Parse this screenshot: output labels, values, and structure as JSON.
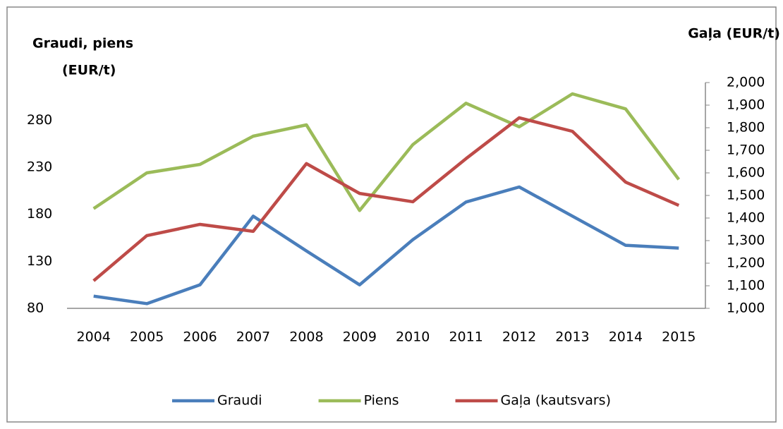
{
  "chart_data": {
    "type": "line",
    "ylabel_lines": [
      "Graudi, piens",
      "(EUR/t)"
    ],
    "y2label": "Gaļa  (EUR/t)",
    "categories": [
      "2004",
      "2005",
      "2006",
      "2007",
      "2008",
      "2009",
      "2010",
      "2011",
      "2012",
      "2013",
      "2014",
      "2015"
    ],
    "series": [
      {
        "name": "Graudi",
        "color": "#4a7ebb",
        "axis": "y",
        "values": [
          93,
          85,
          105,
          178,
          141,
          105,
          153,
          193,
          209,
          178,
          147,
          144
        ]
      },
      {
        "name": "Piens",
        "color": "#9bbb59",
        "axis": "y",
        "values": [
          186,
          224,
          233,
          263,
          275,
          184,
          254,
          298,
          273,
          308,
          292,
          217
        ]
      },
      {
        "name": "Gaļa (kautsvars)",
        "color": "#be4b48",
        "axis": "y2",
        "values": [
          1122,
          1322,
          1372,
          1341,
          1641,
          1509,
          1472,
          1663,
          1844,
          1784,
          1559,
          1456
        ]
      }
    ],
    "ylim": [
      80,
      320
    ],
    "yticks": [
      80,
      130,
      180,
      230,
      280
    ],
    "y2lim": [
      1000,
      2000
    ],
    "y2ticks": [
      {
        "value": 1000,
        "label": "1,000"
      },
      {
        "value": 1100,
        "label": "1,100"
      },
      {
        "value": 1200,
        "label": "1,200"
      },
      {
        "value": 1300,
        "label": "1,300"
      },
      {
        "value": 1400,
        "label": "1,400"
      },
      {
        "value": 1500,
        "label": "1,500"
      },
      {
        "value": 1600,
        "label": "1,600"
      },
      {
        "value": 1700,
        "label": "1,700"
      },
      {
        "value": 1800,
        "label": "1,800"
      },
      {
        "value": 1900,
        "label": "1,900"
      },
      {
        "value": 2000,
        "label": "2,000"
      }
    ],
    "legend": "bottom"
  }
}
